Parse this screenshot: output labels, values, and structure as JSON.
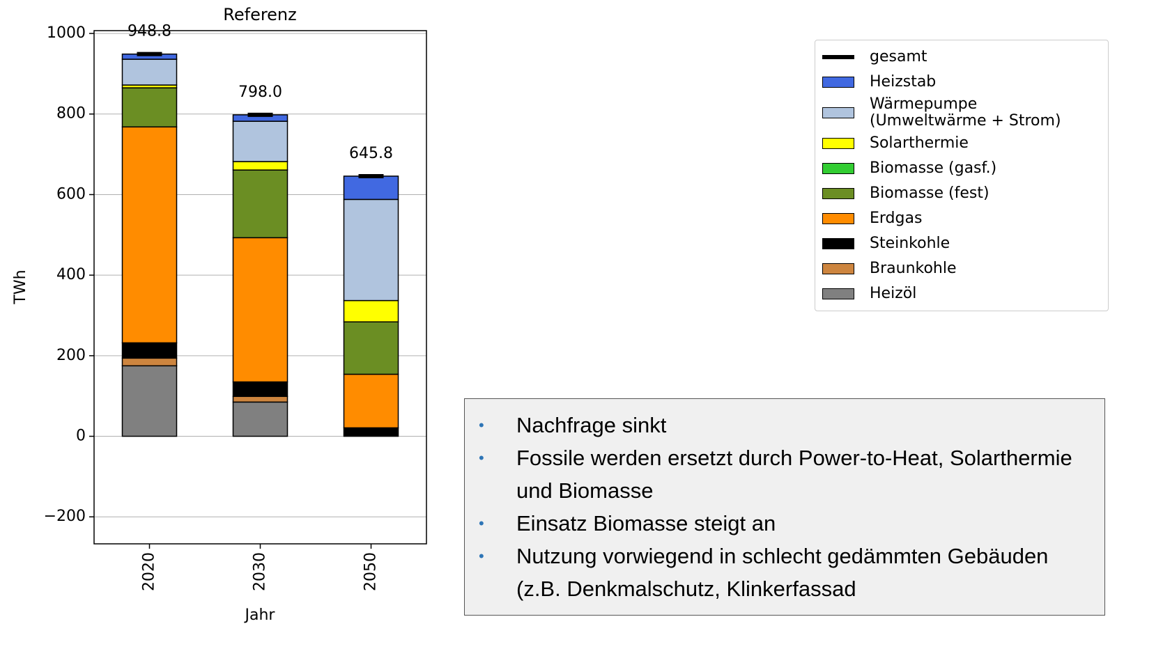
{
  "chart_data": {
    "type": "stacked_bar",
    "title": "Referenz",
    "y_label": "TWh",
    "x_label": "Jahr",
    "categories": [
      "2020",
      "2030",
      "2050"
    ],
    "ylim": [
      -267,
      1007
    ],
    "yticks": [
      {
        "value": -200,
        "label": "−200"
      },
      0,
      200,
      400,
      600,
      800,
      1000
    ],
    "grid": true,
    "series": [
      {
        "name": "Heizöl",
        "color": "#808080",
        "values": [
          175,
          85,
          0
        ]
      },
      {
        "name": "Braunkohle",
        "color": "#cd853f",
        "values": [
          19,
          14,
          0
        ]
      },
      {
        "name": "Steinkohle",
        "color": "#000000",
        "values": [
          38,
          36,
          21
        ]
      },
      {
        "name": "Erdgas",
        "color": "#ff8c00",
        "values": [
          536,
          358,
          133
        ]
      },
      {
        "name": "Biomasse (fest)",
        "color": "#6b8e23",
        "values": [
          97,
          168,
          130
        ]
      },
      {
        "name": "Biomasse (gasf.)",
        "color": "#32cd32",
        "values": [
          0,
          0,
          0
        ]
      },
      {
        "name": "Solarthermie",
        "color": "#ffff00",
        "values": [
          7,
          21,
          53
        ]
      },
      {
        "name": "Wärmepumpe\n(Umweltwärme + Strom)",
        "color": "#b0c4de",
        "values": [
          64,
          100,
          251
        ]
      },
      {
        "name": "Heizstab",
        "color": "#4169e1",
        "values": [
          12.8,
          16,
          57.8
        ]
      }
    ],
    "totals": {
      "name": "gesamt",
      "color": "#000000",
      "values": [
        948.8,
        798.0,
        645.8
      ],
      "value_labels": [
        "948.8",
        "798.0",
        "645.8"
      ]
    }
  },
  "notes": {
    "bullets": [
      "Nachfrage sinkt",
      "Fossile werden ersetzt durch Power-to-Heat, Solarthermie und Biomasse",
      "Einsatz Biomasse steigt an",
      "Nutzung vorwiegend in schlecht gedämmten Gebäuden (z.B. Denkmalschutz, Klinkerfassad"
    ]
  }
}
